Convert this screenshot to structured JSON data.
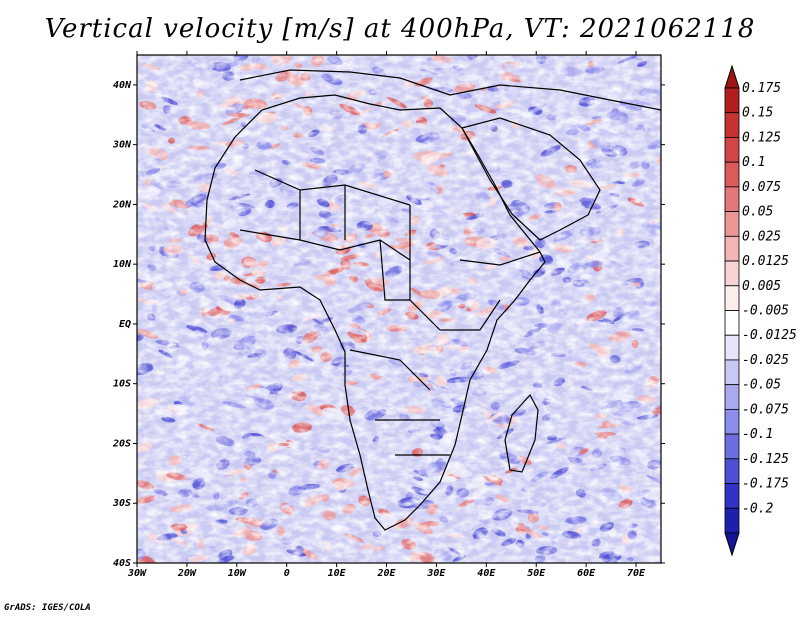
{
  "title": "Vertical velocity [m/s] at 400hPa, VT: 2021062118",
  "credit": "GrADS: IGES/COLA",
  "map": {
    "lon_range": [
      -30,
      75
    ],
    "lat_range": [
      -40,
      45
    ],
    "lat_ticks": [
      {
        "value": 40,
        "label": "40N"
      },
      {
        "value": 30,
        "label": "30N"
      },
      {
        "value": 20,
        "label": "20N"
      },
      {
        "value": 10,
        "label": "10N"
      },
      {
        "value": 0,
        "label": "EQ"
      },
      {
        "value": -10,
        "label": "10S"
      },
      {
        "value": -20,
        "label": "20S"
      },
      {
        "value": -30,
        "label": "30S"
      },
      {
        "value": -40,
        "label": "40S"
      }
    ],
    "lon_ticks": [
      {
        "value": -30,
        "label": "30W"
      },
      {
        "value": -20,
        "label": "20W"
      },
      {
        "value": -10,
        "label": "10W"
      },
      {
        "value": 0,
        "label": "0"
      },
      {
        "value": 10,
        "label": "10E"
      },
      {
        "value": 20,
        "label": "20E"
      },
      {
        "value": 30,
        "label": "30E"
      },
      {
        "value": 40,
        "label": "40E"
      },
      {
        "value": 50,
        "label": "50E"
      },
      {
        "value": 60,
        "label": "60E"
      },
      {
        "value": 70,
        "label": "70E"
      }
    ]
  },
  "colorbar": {
    "levels": [
      {
        "label": "0.175",
        "color": "#b41e1e"
      },
      {
        "label": "0.15",
        "color": "#c83232"
      },
      {
        "label": "0.125",
        "color": "#d24646"
      },
      {
        "label": "0.1",
        "color": "#dc5a5a"
      },
      {
        "label": "0.075",
        "color": "#e47878"
      },
      {
        "label": "0.05",
        "color": "#ec9696"
      },
      {
        "label": "0.025",
        "color": "#f2b4b4"
      },
      {
        "label": "0.0125",
        "color": "#f8d2d2"
      },
      {
        "label": "0.005",
        "color": "#fcecec"
      },
      {
        "label": "-0.005",
        "color": "#ffffff"
      },
      {
        "label": "-0.0125",
        "color": "#e6e6fa"
      },
      {
        "label": "-0.025",
        "color": "#c8c8f5"
      },
      {
        "label": "-0.05",
        "color": "#aaaaf0"
      },
      {
        "label": "-0.075",
        "color": "#8c8ceb"
      },
      {
        "label": "-0.1",
        "color": "#6e6ee1"
      },
      {
        "label": "-0.125",
        "color": "#5050d7"
      },
      {
        "label": "-0.175",
        "color": "#3232c8"
      },
      {
        "label": "-0.2",
        "color": "#1e1eaf"
      }
    ],
    "top_cap_color": "#a01414",
    "bottom_cap_color": "#14149b"
  }
}
